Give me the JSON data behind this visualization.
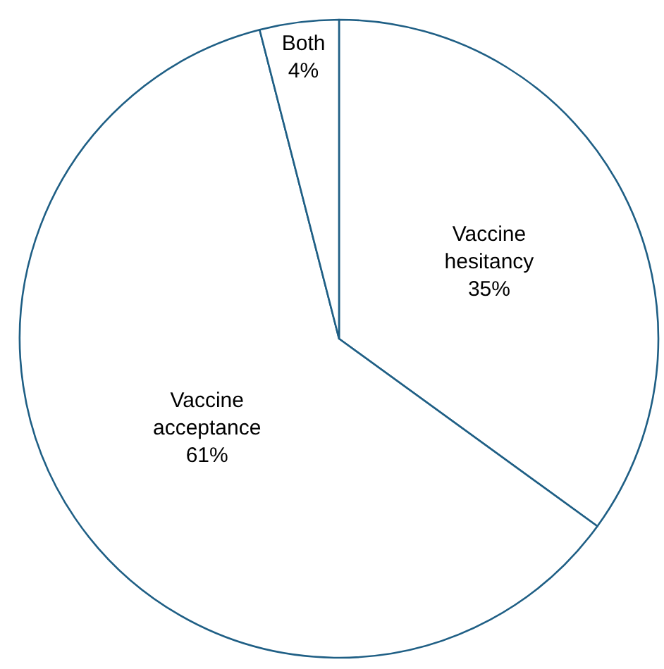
{
  "chart_data": {
    "type": "pie",
    "categories": [
      "Vaccine hesitancy",
      "Vaccine acceptance",
      "Both"
    ],
    "values": [
      35,
      61,
      4
    ],
    "colors": [
      "#ffffff",
      "#ffffff",
      "#ffffff"
    ],
    "value_labels": [
      "35%",
      "61%",
      "4%"
    ],
    "legend": false
  }
}
